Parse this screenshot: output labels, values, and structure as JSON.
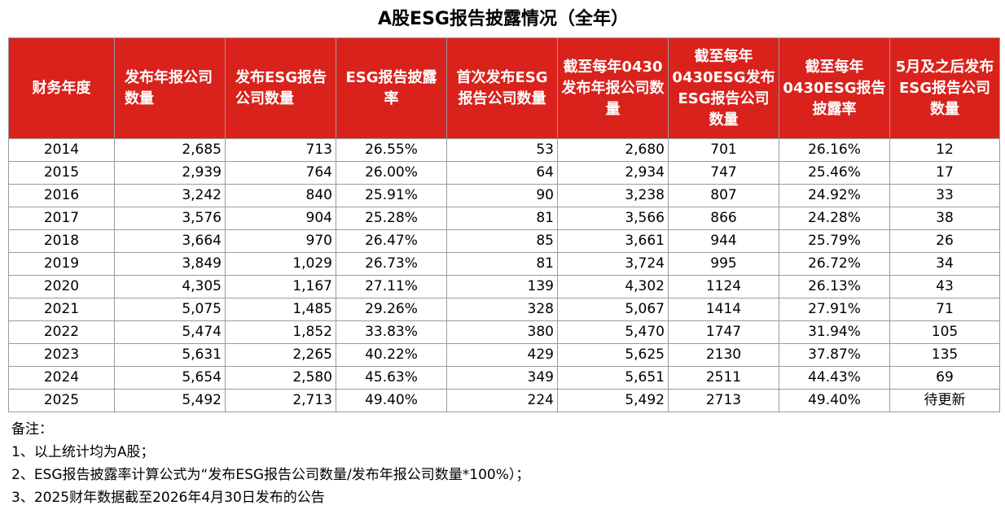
{
  "title": "A股ESG报告披露情况（全年）",
  "headers": [
    "财务年度",
    "发布年报公司数量",
    "发布ESG报告公司数量",
    "ESG报告披露率",
    "首次发布ESG报告公司数量",
    "截至每年0430发布年报公司数量",
    "截至每年0430ESG发布ESG报告公司数量",
    "截至每年0430ESG报告披露率",
    "5月及之后发布ESG报告公司数量"
  ],
  "rows": [
    [
      "2014",
      "2,685",
      "713",
      "26.55%",
      "53",
      "2,680",
      "701",
      "26.16%",
      "12"
    ],
    [
      "2015",
      "2,939",
      "764",
      "26.00%",
      "64",
      "2,934",
      "747",
      "25.46%",
      "17"
    ],
    [
      "2016",
      "3,242",
      "840",
      "25.91%",
      "90",
      "3,238",
      "807",
      "24.92%",
      "33"
    ],
    [
      "2017",
      "3,576",
      "904",
      "25.28%",
      "81",
      "3,566",
      "866",
      "24.28%",
      "38"
    ],
    [
      "2018",
      "3,664",
      "970",
      "26.47%",
      "85",
      "3,661",
      "944",
      "25.79%",
      "26"
    ],
    [
      "2019",
      "3,849",
      "1,029",
      "26.73%",
      "81",
      "3,724",
      "995",
      "26.72%",
      "34"
    ],
    [
      "2020",
      "4,305",
      "1,167",
      "27.11%",
      "139",
      "4,302",
      "1124",
      "26.13%",
      "43"
    ],
    [
      "2021",
      "5,075",
      "1,485",
      "29.26%",
      "328",
      "5,067",
      "1414",
      "27.91%",
      "71"
    ],
    [
      "2022",
      "5,474",
      "1,852",
      "33.83%",
      "380",
      "5,470",
      "1747",
      "31.94%",
      "105"
    ],
    [
      "2023",
      "5,631",
      "2,265",
      "40.22%",
      "429",
      "5,625",
      "2130",
      "37.87%",
      "135"
    ],
    [
      "2024",
      "5,654",
      "2,580",
      "45.63%",
      "349",
      "5,651",
      "2511",
      "44.43%",
      "69"
    ],
    [
      "2025",
      "5,492",
      "2,713",
      "49.40%",
      "224",
      "5,492",
      "2713",
      "49.40%",
      "待更新"
    ]
  ],
  "notes": [
    "备注：",
    "1、以上统计均为A股；",
    "2、ESG报告披露率计算公式为“发布ESG报告公司数量/发布年报公司数量*100%）；",
    "3、2025财年数据截至2026年4月30日发布的公告"
  ],
  "colors": {
    "header_bg": "#d9221c",
    "header_text": "#ffffff",
    "grid_line": "#9a9a9a"
  }
}
